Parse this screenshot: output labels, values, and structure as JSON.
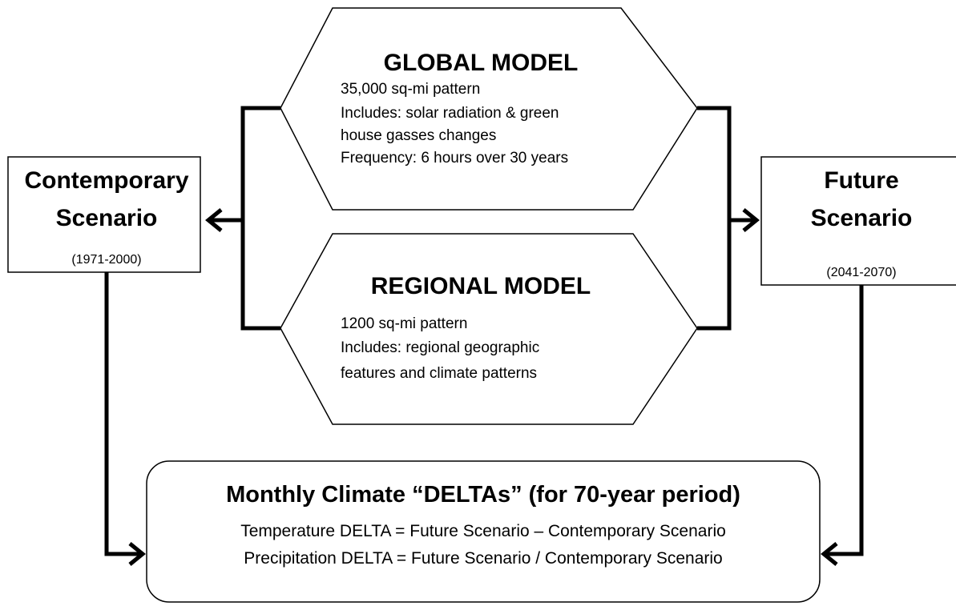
{
  "nodes": [
    {
      "title": "GLOBAL MODEL",
      "lines": [
        "35,000 sq-mi pattern",
        "Includes: solar radiation & green",
        "house gasses changes",
        "Frequency: 6 hours over 30 years"
      ]
    },
    {
      "title": "REGIONAL MODEL",
      "lines": [
        "1200 sq-mi pattern",
        "Includes: regional geographic",
        "features and climate patterns"
      ]
    },
    {
      "title": [
        "Contemporary",
        "Scenario"
      ],
      "period": "(1971-2000)"
    },
    {
      "title": [
        "Future",
        "Scenario"
      ],
      "period": "(2041-2070)"
    },
    {
      "title": "Monthly Climate “DELTAs” (for 70-year period)",
      "lines": [
        "Temperature DELTA = Future Scenario – Contemporary Scenario",
        "Precipitation DELTA = Future Scenario / Contemporary Scenario"
      ]
    }
  ]
}
